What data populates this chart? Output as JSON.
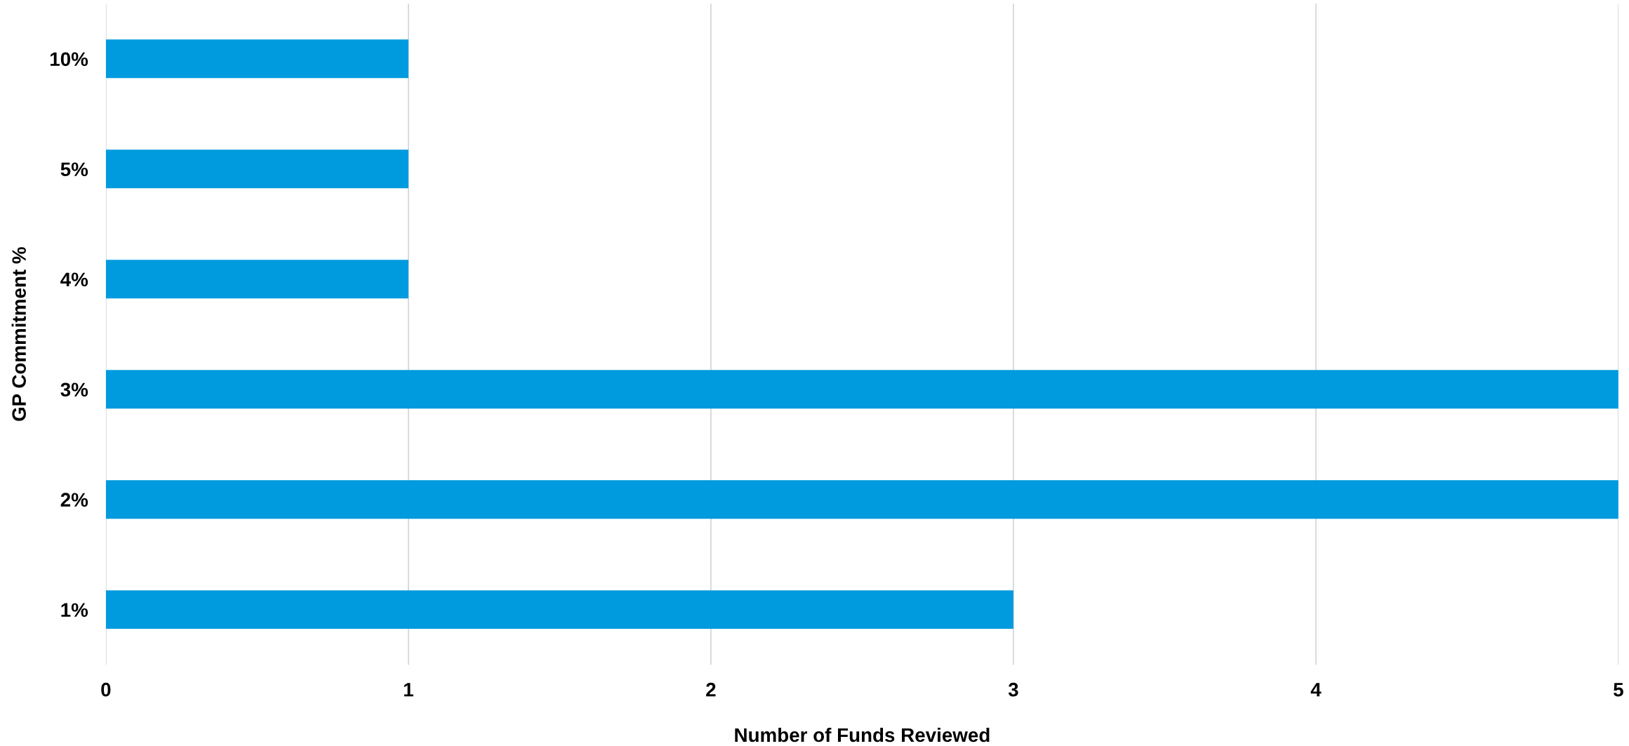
{
  "chart_data": {
    "type": "bar",
    "orientation": "horizontal",
    "xlabel": "Number of Funds Reviewed",
    "ylabel": "GP Commitment %",
    "categories": [
      "10%",
      "5%",
      "4%",
      "3%",
      "2%",
      "1%"
    ],
    "values": [
      1,
      1,
      1,
      5,
      5,
      3
    ],
    "color": "#009ade",
    "xlim": [
      0,
      5
    ],
    "xticks": [
      0,
      1,
      2,
      3,
      4,
      5
    ],
    "grid": "x",
    "legend": false
  }
}
